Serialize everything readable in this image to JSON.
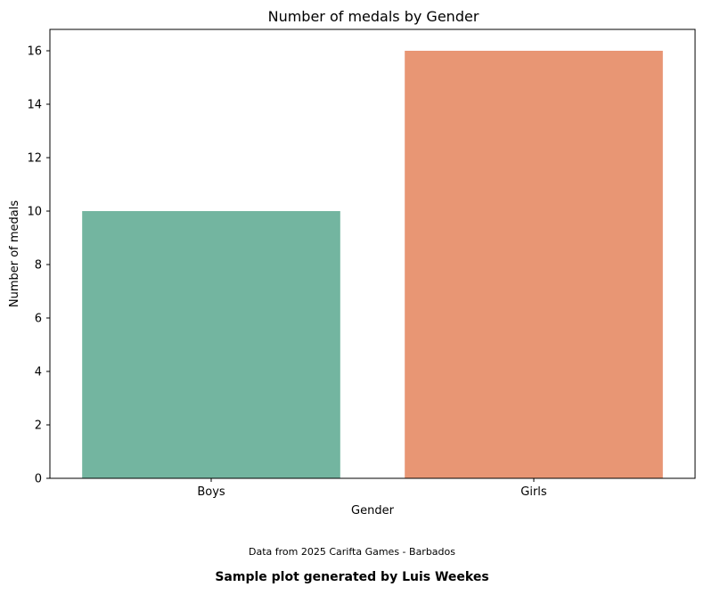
{
  "chart_data": {
    "type": "bar",
    "title": "Number of medals by Gender",
    "xlabel": "Gender",
    "ylabel": "Number of medals",
    "categories": [
      "Boys",
      "Girls"
    ],
    "values": [
      10,
      16
    ],
    "colors": [
      "#73b5a0",
      "#e89674"
    ],
    "ylim": [
      0,
      16.8
    ],
    "yticks": [
      0,
      2,
      4,
      6,
      8,
      10,
      12,
      14,
      16
    ],
    "grid": false,
    "legend": "none"
  },
  "footer": {
    "source_note": "Data from 2025 Carifta Games - Barbados",
    "credit": "Sample plot generated by Luis Weekes"
  }
}
